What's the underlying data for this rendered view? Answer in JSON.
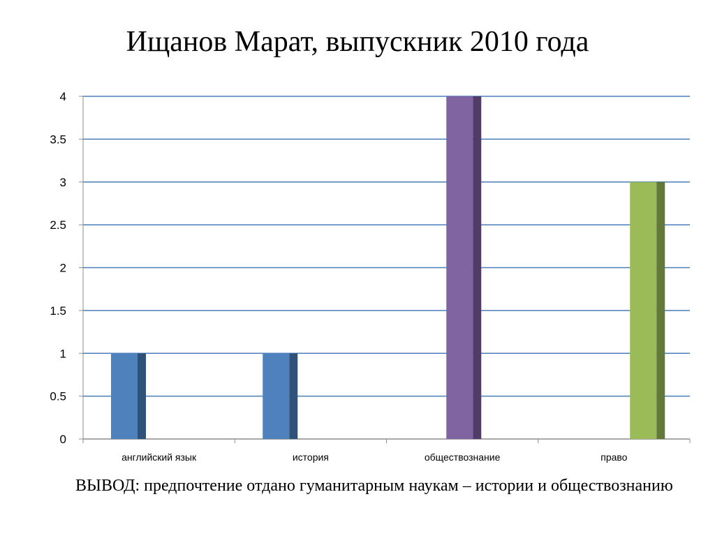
{
  "title": "Ищанов Марат, выпускник 2010 года",
  "conclusion": "ВЫВОД: предпочтение отдано гуманитарным наукам – истории и обществознанию",
  "chart_data": {
    "type": "bar",
    "title": "",
    "xlabel": "",
    "ylabel": "",
    "categories": [
      "английский язык",
      "история",
      "обществознание",
      "право"
    ],
    "series": [
      {
        "values": [
          1,
          1,
          null,
          null
        ],
        "color": "#4F81BD",
        "shade": "#2F527A"
      },
      {
        "values": [
          null,
          null,
          4,
          null
        ],
        "color": "#8064A2",
        "shade": "#4F3D68"
      },
      {
        "values": [
          null,
          null,
          null,
          3
        ],
        "color": "#9BBB59",
        "shade": "#62793A"
      }
    ],
    "ylim": [
      0,
      4
    ],
    "yticks": [
      0,
      0.5,
      1,
      1.5,
      2,
      2.5,
      3,
      3.5,
      4
    ],
    "ytick_labels": [
      "0",
      "0.5",
      "1",
      "1.5",
      "2",
      "2.5",
      "3",
      "3.5",
      "4"
    ],
    "grid": true,
    "grid_color": "#4A7EBB",
    "legend": "none"
  }
}
